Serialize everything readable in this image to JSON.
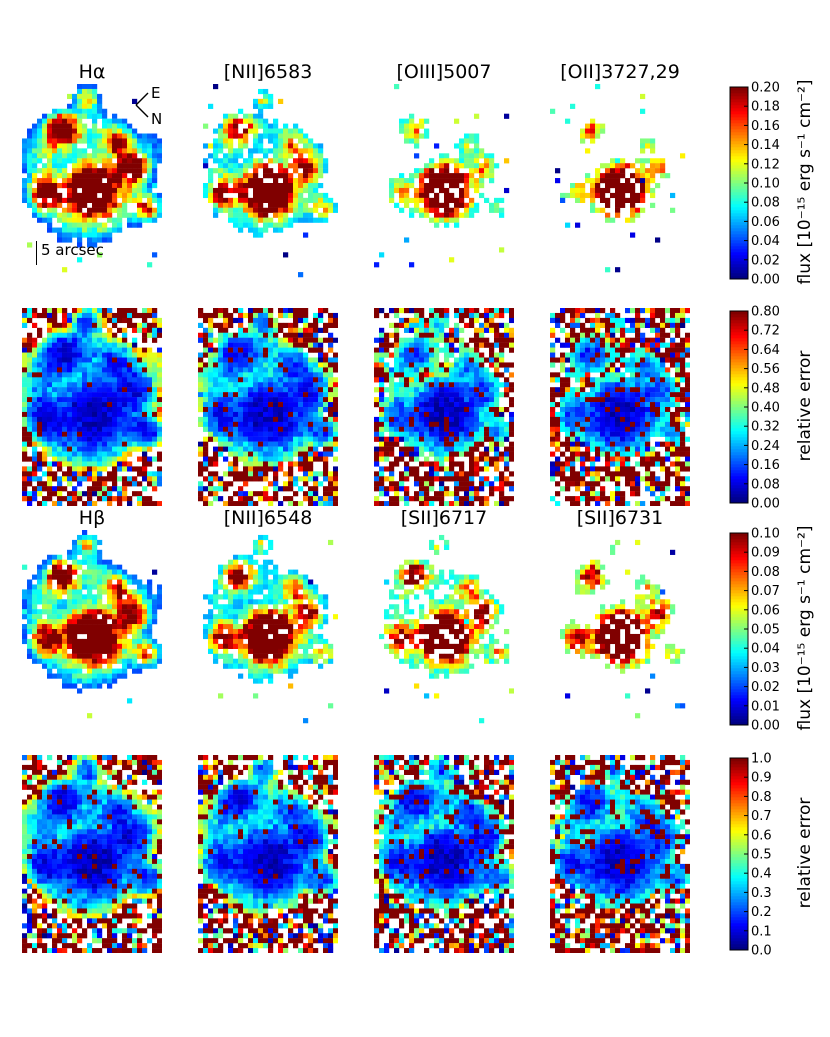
{
  "chart_data": {
    "type": "heatmap",
    "rows": [
      {
        "kind": "flux",
        "panels": [
          "Hα",
          "[NII]6583",
          "[OIII]5007",
          "[OII]3727,29"
        ],
        "colorbar": {
          "label": "flux [10⁻¹⁵ erg s⁻¹ cm⁻²]",
          "range": [
            0,
            0.2
          ],
          "ticks": [
            "0.00",
            "0.02",
            "0.04",
            "0.06",
            "0.08",
            "0.10",
            "0.12",
            "0.14",
            "0.16",
            "0.18",
            "0.20"
          ]
        }
      },
      {
        "kind": "error",
        "panels": [
          "",
          "",
          "",
          ""
        ],
        "colorbar": {
          "label": "relative error",
          "range": [
            0,
            0.8
          ],
          "ticks": [
            "0.00",
            "0.08",
            "0.16",
            "0.24",
            "0.32",
            "0.40",
            "0.48",
            "0.56",
            "0.64",
            "0.72",
            "0.80"
          ]
        }
      },
      {
        "kind": "flux",
        "panels": [
          "Hβ",
          "[NII]6548",
          "[SII]6717",
          "[SII]6731"
        ],
        "colorbar": {
          "label": "flux [10⁻¹⁵ erg s⁻¹ cm⁻²]",
          "range": [
            0,
            0.1
          ],
          "ticks": [
            "0.00",
            "0.01",
            "0.02",
            "0.03",
            "0.04",
            "0.05",
            "0.06",
            "0.07",
            "0.08",
            "0.09",
            "0.10"
          ]
        }
      },
      {
        "kind": "error",
        "panels": [
          "",
          "",
          "",
          ""
        ],
        "colorbar": {
          "label": "relative error",
          "range": [
            0,
            1.0
          ],
          "ticks": [
            "0.0",
            "0.1",
            "0.2",
            "0.3",
            "0.4",
            "0.5",
            "0.6",
            "0.7",
            "0.8",
            "0.9",
            "1.0"
          ]
        }
      }
    ],
    "annotations": {
      "scalebar": "5 arcsec",
      "east": "E",
      "north": "N"
    },
    "colormap": "jet"
  }
}
